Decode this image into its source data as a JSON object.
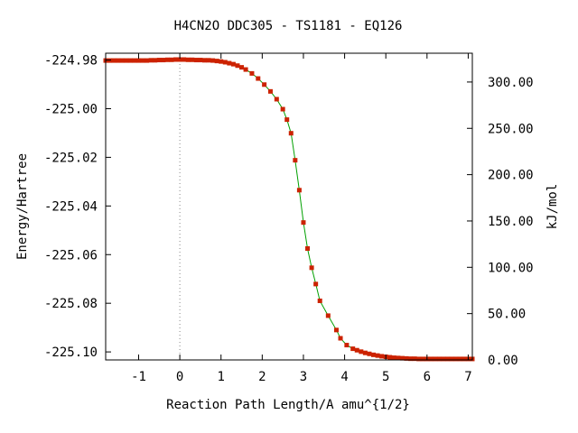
{
  "chart_data": {
    "type": "line",
    "title": "H4CN2O   DDC305 - TS1181 - EQ126",
    "xlabel": "Reaction Path Length/A amu^{1/2}",
    "ylabel": "Energy/Hartree",
    "y2label": "kJ/mol",
    "xlim": [
      -1.8,
      7.1
    ],
    "ylim": [
      -225.1033,
      -224.9772
    ],
    "y2lim": [
      0.0,
      331.08
    ],
    "x_ticks": [
      {
        "value": -1,
        "label": "-1"
      },
      {
        "value": 0,
        "label": "0"
      },
      {
        "value": 1,
        "label": "1"
      },
      {
        "value": 2,
        "label": "2"
      },
      {
        "value": 3,
        "label": "3"
      },
      {
        "value": 4,
        "label": "4"
      },
      {
        "value": 5,
        "label": "5"
      },
      {
        "value": 6,
        "label": "6"
      },
      {
        "value": 7,
        "label": "7"
      }
    ],
    "y_ticks": [
      {
        "value": -224.98,
        "label": "-224.98"
      },
      {
        "value": -225.0,
        "label": "-225.00"
      },
      {
        "value": -225.02,
        "label": "-225.02"
      },
      {
        "value": -225.04,
        "label": "-225.04"
      },
      {
        "value": -225.06,
        "label": "-225.06"
      },
      {
        "value": -225.08,
        "label": "-225.08"
      },
      {
        "value": -225.1,
        "label": "-225.10"
      }
    ],
    "y2_ticks": [
      {
        "value": 0,
        "label": "0.00"
      },
      {
        "value": 50,
        "label": "50.00"
      },
      {
        "value": 100,
        "label": "100.00"
      },
      {
        "value": 150,
        "label": "150.00"
      },
      {
        "value": 200,
        "label": "200.00"
      },
      {
        "value": 250,
        "label": "250.00"
      },
      {
        "value": 300,
        "label": "300.00"
      }
    ],
    "ts_marker_x": 0.0,
    "grid": false,
    "line_color": "#00a000",
    "marker_color": "#cc2200",
    "series": [
      {
        "x": [
          -1.8,
          -1.7,
          -1.6,
          -1.5,
          -1.4,
          -1.3,
          -1.2,
          -1.1,
          -1.0,
          -0.9,
          -0.8,
          -0.7,
          -0.6,
          -0.5,
          -0.4,
          -0.3,
          -0.2,
          -0.1,
          0.0,
          0.1,
          0.2,
          0.3,
          0.4,
          0.5,
          0.6,
          0.7,
          0.8,
          0.9,
          1.0,
          1.1,
          1.2,
          1.3,
          1.4,
          1.5,
          1.6,
          1.75,
          1.9,
          2.05,
          2.2,
          2.35,
          2.5,
          2.6,
          2.7,
          2.8,
          2.9,
          3.0,
          3.1,
          3.2,
          3.3,
          3.4,
          3.6,
          3.8,
          3.9,
          4.05,
          4.2,
          4.3,
          4.4,
          4.5,
          4.6,
          4.7,
          4.8,
          4.9,
          5.0,
          5.1,
          5.2,
          5.3,
          5.4,
          5.5,
          5.6,
          5.7,
          5.8,
          5.9,
          6.0,
          6.1,
          6.2,
          6.3,
          6.4,
          6.5,
          6.6,
          6.7,
          6.8,
          6.9,
          7.0,
          7.1
        ],
        "y": [
          -224.9802,
          -224.9802,
          -224.9802,
          -224.9802,
          -224.9802,
          -224.9802,
          -224.9802,
          -224.9802,
          -224.9802,
          -224.9802,
          -224.9802,
          -224.9801,
          -224.9801,
          -224.98,
          -224.98,
          -224.9799,
          -224.9799,
          -224.9798,
          -224.9798,
          -224.9798,
          -224.9799,
          -224.9799,
          -224.98,
          -224.98,
          -224.9801,
          -224.9801,
          -224.9802,
          -224.9804,
          -224.9806,
          -224.9809,
          -224.9813,
          -224.9817,
          -224.9823,
          -224.983,
          -224.9839,
          -224.9855,
          -224.9876,
          -224.9901,
          -224.9929,
          -224.9961,
          -225.0002,
          -225.0045,
          -225.0101,
          -225.0212,
          -225.0335,
          -225.0468,
          -225.0575,
          -225.0654,
          -225.0721,
          -225.079,
          -225.0851,
          -225.091,
          -225.0944,
          -225.0972,
          -225.0987,
          -225.0993,
          -225.0999,
          -225.1004,
          -225.1008,
          -225.1012,
          -225.1015,
          -225.1018,
          -225.102,
          -225.1022,
          -225.1024,
          -225.1025,
          -225.1026,
          -225.1027,
          -225.1028,
          -225.1028,
          -225.1029,
          -225.1029,
          -225.1029,
          -225.1029,
          -225.1029,
          -225.1029,
          -225.1029,
          -225.1029,
          -225.1029,
          -225.1029,
          -225.1029,
          -225.1029,
          -225.1029,
          -225.1029
        ]
      }
    ]
  }
}
